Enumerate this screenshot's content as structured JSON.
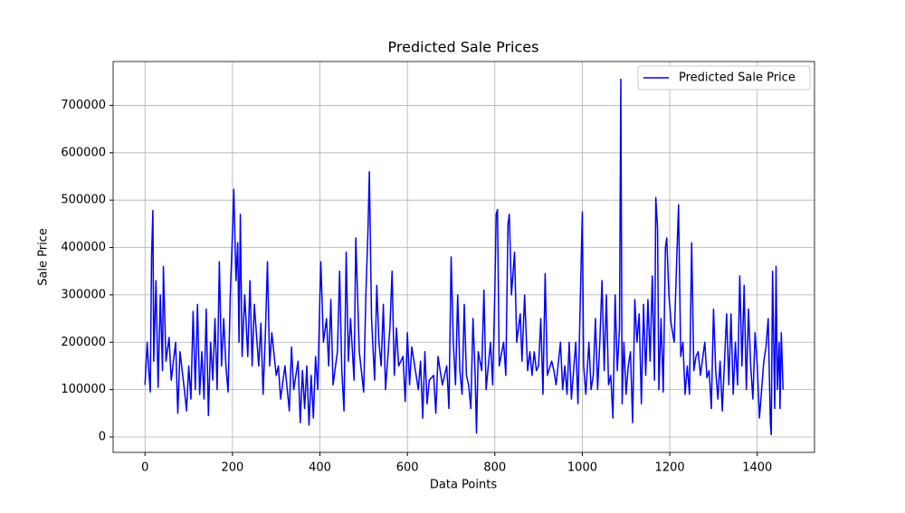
{
  "chart_data": {
    "type": "line",
    "title": "Predicted Sale Prices",
    "xlabel": "Data Points",
    "ylabel": "Sale Price",
    "x": [
      0,
      5,
      8,
      12,
      15,
      18,
      20,
      25,
      30,
      35,
      40,
      42,
      48,
      55,
      60,
      70,
      75,
      80,
      90,
      95,
      100,
      105,
      110,
      115,
      120,
      125,
      130,
      135,
      140,
      145,
      150,
      155,
      160,
      165,
      170,
      175,
      180,
      185,
      190,
      195,
      200,
      203,
      208,
      212,
      215,
      218,
      222,
      228,
      235,
      240,
      245,
      250,
      260,
      265,
      270,
      275,
      280,
      285,
      290,
      300,
      305,
      310,
      320,
      330,
      335,
      340,
      350,
      355,
      360,
      365,
      370,
      375,
      380,
      385,
      390,
      395,
      400,
      402,
      408,
      415,
      420,
      425,
      430,
      440,
      445,
      450,
      455,
      460,
      465,
      470,
      478,
      482,
      490,
      500,
      505,
      510,
      513,
      518,
      525,
      530,
      535,
      540,
      545,
      550,
      560,
      565,
      570,
      575,
      580,
      590,
      595,
      600,
      605,
      610,
      620,
      625,
      630,
      635,
      640,
      645,
      650,
      660,
      665,
      670,
      680,
      690,
      695,
      700,
      705,
      710,
      715,
      720,
      725,
      730,
      735,
      740,
      745,
      750,
      755,
      758,
      762,
      770,
      775,
      780,
      790,
      795,
      800,
      803,
      806,
      810,
      820,
      825,
      830,
      833,
      838,
      845,
      850,
      858,
      862,
      868,
      875,
      880,
      885,
      890,
      895,
      900,
      905,
      910,
      915,
      920,
      930,
      935,
      940,
      950,
      955,
      960,
      965,
      970,
      975,
      980,
      985,
      990,
      1000,
      1003,
      1008,
      1015,
      1020,
      1025,
      1030,
      1035,
      1040,
      1045,
      1050,
      1055,
      1060,
      1065,
      1070,
      1075,
      1080,
      1085,
      1088,
      1091,
      1095,
      1100,
      1105,
      1110,
      1115,
      1120,
      1125,
      1130,
      1135,
      1140,
      1145,
      1150,
      1155,
      1160,
      1165,
      1168,
      1172,
      1175,
      1180,
      1185,
      1190,
      1193,
      1198,
      1203,
      1210,
      1215,
      1220,
      1225,
      1230,
      1235,
      1240,
      1245,
      1250,
      1255,
      1260,
      1265,
      1270,
      1280,
      1285,
      1290,
      1295,
      1300,
      1305,
      1310,
      1315,
      1320,
      1330,
      1335,
      1340,
      1345,
      1350,
      1355,
      1360,
      1365,
      1370,
      1375,
      1380,
      1385,
      1390,
      1395,
      1400,
      1405,
      1410,
      1415,
      1420,
      1425,
      1430,
      1432,
      1435,
      1440,
      1443,
      1446,
      1450,
      1452,
      1455,
      1459
    ],
    "series": [
      {
        "name": "Predicted Sale Price",
        "color": "#0000ff",
        "values": [
          110000,
          200000,
          150000,
          95000,
          380000,
          478000,
          160000,
          330000,
          105000,
          300000,
          140000,
          360000,
          160000,
          210000,
          120000,
          200000,
          50000,
          180000,
          100000,
          55000,
          150000,
          80000,
          265000,
          100000,
          280000,
          90000,
          180000,
          80000,
          270000,
          45000,
          200000,
          120000,
          250000,
          100000,
          370000,
          150000,
          250000,
          150000,
          95000,
          300000,
          430000,
          523000,
          330000,
          410000,
          200000,
          470000,
          170000,
          300000,
          170000,
          330000,
          150000,
          280000,
          150000,
          240000,
          90000,
          210000,
          370000,
          150000,
          220000,
          130000,
          150000,
          80000,
          150000,
          55000,
          190000,
          100000,
          160000,
          30000,
          140000,
          60000,
          150000,
          25000,
          130000,
          40000,
          170000,
          100000,
          300000,
          370000,
          200000,
          250000,
          150000,
          290000,
          110000,
          180000,
          350000,
          140000,
          55000,
          390000,
          160000,
          250000,
          120000,
          420000,
          180000,
          95000,
          300000,
          440000,
          560000,
          250000,
          120000,
          320000,
          200000,
          150000,
          280000,
          100000,
          230000,
          350000,
          130000,
          230000,
          150000,
          170000,
          75000,
          220000,
          110000,
          190000,
          130000,
          100000,
          160000,
          40000,
          180000,
          70000,
          120000,
          130000,
          50000,
          170000,
          110000,
          150000,
          60000,
          380000,
          200000,
          110000,
          300000,
          140000,
          90000,
          280000,
          130000,
          110000,
          60000,
          250000,
          130000,
          8000,
          180000,
          140000,
          310000,
          100000,
          200000,
          110000,
          310000,
          470000,
          480000,
          150000,
          200000,
          130000,
          450000,
          470000,
          300000,
          390000,
          200000,
          260000,
          160000,
          300000,
          140000,
          180000,
          130000,
          180000,
          140000,
          150000,
          250000,
          90000,
          345000,
          130000,
          160000,
          140000,
          110000,
          200000,
          100000,
          150000,
          90000,
          200000,
          80000,
          140000,
          200000,
          70000,
          475000,
          150000,
          90000,
          200000,
          100000,
          130000,
          250000,
          100000,
          200000,
          330000,
          140000,
          300000,
          110000,
          130000,
          40000,
          300000,
          140000,
          230000,
          755000,
          70000,
          200000,
          90000,
          150000,
          180000,
          30000,
          290000,
          200000,
          260000,
          70000,
          280000,
          130000,
          290000,
          160000,
          340000,
          120000,
          505000,
          440000,
          100000,
          250000,
          95000,
          400000,
          420000,
          300000,
          240000,
          200000,
          350000,
          490000,
          170000,
          200000,
          90000,
          150000,
          90000,
          410000,
          140000,
          170000,
          180000,
          130000,
          200000,
          125000,
          140000,
          60000,
          270000,
          140000,
          80000,
          160000,
          55000,
          260000,
          110000,
          260000,
          90000,
          200000,
          110000,
          340000,
          150000,
          320000,
          100000,
          270000,
          150000,
          80000,
          220000,
          150000,
          40000,
          100000,
          160000,
          190000,
          250000,
          30000,
          5000,
          350000,
          60000,
          360000,
          100000,
          200000,
          60000,
          220000,
          100000
        ]
      }
    ],
    "xlim": [
      -72.9,
      1530.9
    ],
    "ylim": [
      -32500,
      792500
    ],
    "xticks": [
      0,
      200,
      400,
      600,
      800,
      1000,
      1200,
      1400
    ],
    "yticks": [
      0,
      100000,
      200000,
      300000,
      400000,
      500000,
      600000,
      700000
    ],
    "grid": true,
    "legend": "upper right"
  }
}
